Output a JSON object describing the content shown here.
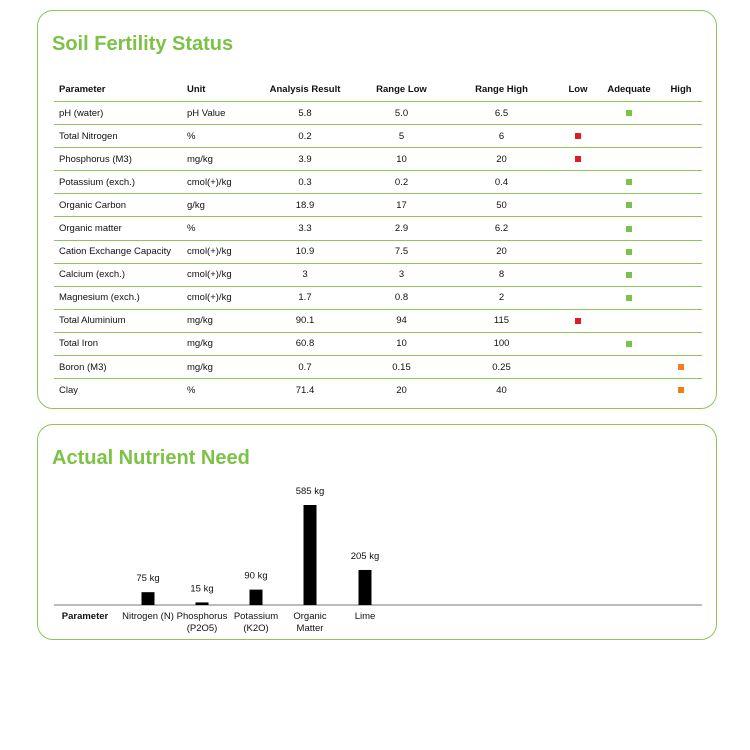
{
  "soil_status": {
    "title": "Soil Fertility Status",
    "columns": [
      "Parameter",
      "Unit",
      "Analysis Result",
      "Range Low",
      "Range High",
      "Low",
      "Adequate",
      "High"
    ],
    "rows": [
      {
        "parameter": "pH (water)",
        "unit": "pH Value",
        "result": "5.8",
        "range_low": "5.0",
        "range_high": "6.5",
        "status": "adequate"
      },
      {
        "parameter": "Total Nitrogen",
        "unit": "%",
        "result": "0.2",
        "range_low": "5",
        "range_high": "6",
        "status": "low"
      },
      {
        "parameter": "Phosphorus (M3)",
        "unit": "mg/kg",
        "result": "3.9",
        "range_low": "10",
        "range_high": "20",
        "status": "low"
      },
      {
        "parameter": "Potassium (exch.)",
        "unit": "cmol(+)/kg",
        "result": "0.3",
        "range_low": "0.2",
        "range_high": "0.4",
        "status": "adequate"
      },
      {
        "parameter": "Organic Carbon",
        "unit": "g/kg",
        "result": "18.9",
        "range_low": "17",
        "range_high": "50",
        "status": "adequate"
      },
      {
        "parameter": "Organic matter",
        "unit": "%",
        "result": "3.3",
        "range_low": "2.9",
        "range_high": "6.2",
        "status": "adequate"
      },
      {
        "parameter": "Cation Exchange Capacity",
        "unit": "cmol(+)/kg",
        "result": "10.9",
        "range_low": "7.5",
        "range_high": "20",
        "status": "adequate"
      },
      {
        "parameter": "Calcium (exch.)",
        "unit": "cmol(+)/kg",
        "result": "3",
        "range_low": "3",
        "range_high": "8",
        "status": "adequate"
      },
      {
        "parameter": "Magnesium (exch.)",
        "unit": "cmol(+)/kg",
        "result": "1.7",
        "range_low": "0.8",
        "range_high": "2",
        "status": "adequate"
      },
      {
        "parameter": "Total Aluminium",
        "unit": "mg/kg",
        "result": "90.1",
        "range_low": "94",
        "range_high": "115",
        "status": "low"
      },
      {
        "parameter": "Total Iron",
        "unit": "mg/kg",
        "result": "60.8",
        "range_low": "10",
        "range_high": "100",
        "status": "adequate"
      },
      {
        "parameter": "Boron (M3)",
        "unit": "mg/kg",
        "result": "0.7",
        "range_low": "0.15",
        "range_high": "0.25",
        "status": "high"
      },
      {
        "parameter": "Clay",
        "unit": "%",
        "result": "71.4",
        "range_low": "20",
        "range_high": "40",
        "status": "high"
      }
    ],
    "status_colors": {
      "low": "#e31b23",
      "adequate": "#7cc246",
      "high": "#f07f1b"
    }
  },
  "nutrient_need": {
    "title": "Actual Nutrient Need"
  },
  "chart_data": {
    "type": "bar",
    "xlabel": "Parameter",
    "categories": [
      [
        "Nitrogen (N)"
      ],
      [
        "Phosphorus",
        "(P2O5)"
      ],
      [
        "Potassium",
        "(K2O)"
      ],
      [
        "Organic",
        "Matter"
      ],
      [
        "Lime"
      ]
    ],
    "values": [
      75,
      15,
      90,
      585,
      205
    ],
    "value_labels": [
      "75 kg",
      "15 kg",
      "90 kg",
      "585 kg",
      "205 kg"
    ],
    "unit": "kg",
    "bar_color": "#000000",
    "ylim": [
      0,
      585
    ]
  },
  "colors": {
    "accent": "#7cc246",
    "border": "#8cc65a"
  }
}
